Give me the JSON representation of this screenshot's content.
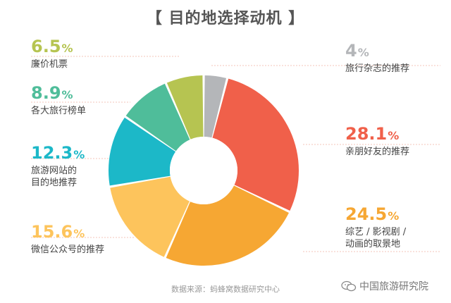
{
  "title": "【 目的地选择动机 】",
  "chart_data": {
    "type": "pie",
    "donut": true,
    "slices": [
      {
        "label": "旅行杂志的推荐",
        "value": 4,
        "pct_label": "4",
        "color": "#b4b6b9"
      },
      {
        "label": "亲朋好友的推荐",
        "value": 28.1,
        "pct_label": "28.1",
        "color": "#f0604a"
      },
      {
        "label": "综艺 / 影视剧 /\n动画的取景地",
        "value": 24.5,
        "pct_label": "24.5",
        "color": "#f6a733"
      },
      {
        "label": "微信公众号的推荐",
        "value": 15.6,
        "pct_label": "15.6",
        "color": "#fdc45c"
      },
      {
        "label": "旅游网站的\n目的地推荐",
        "value": 12.3,
        "pct_label": "12.3",
        "color": "#1cb8c8"
      },
      {
        "label": "各大旅行榜单",
        "value": 8.9,
        "pct_label": "8.9",
        "color": "#4fbd9a"
      },
      {
        "label": "廉价机票",
        "value": 6.5,
        "pct_label": "6.5",
        "color": "#b6c451"
      }
    ],
    "unit": "%"
  },
  "source": "数据来源：蚂蜂窝数据研究中心",
  "watermark": "中国旅游研究院"
}
